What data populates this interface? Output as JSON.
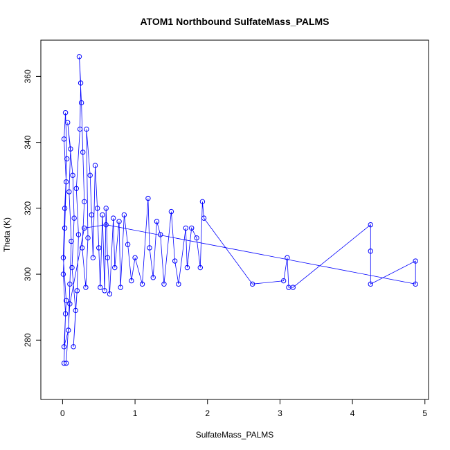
{
  "chart_data": {
    "type": "scatter",
    "title": "ATOM1 Northbound SulfateMass_PALMS",
    "xlabel": "SulfateMass_PALMS",
    "ylabel": "Theta (K)",
    "xlim": [
      -0.3,
      5.05
    ],
    "ylim": [
      262,
      371
    ],
    "x_ticks": [
      0,
      1,
      2,
      3,
      4,
      5
    ],
    "y_ticks": [
      280,
      300,
      320,
      340,
      360
    ],
    "point_style": "open-circle",
    "connected": true,
    "color": "#0000ff",
    "series": [
      {
        "values": [
          {
            "x": 0.02,
            "y": 273
          },
          {
            "x": 0.04,
            "y": 288
          },
          {
            "x": 0.01,
            "y": 300
          },
          {
            "x": 0.03,
            "y": 314
          },
          {
            "x": 0.05,
            "y": 328
          },
          {
            "x": 0.02,
            "y": 341
          },
          {
            "x": 0.04,
            "y": 349
          },
          {
            "x": 0.06,
            "y": 335
          },
          {
            "x": 0.03,
            "y": 320
          },
          {
            "x": 0.01,
            "y": 305
          },
          {
            "x": 0.05,
            "y": 292
          },
          {
            "x": 0.02,
            "y": 278
          },
          {
            "x": 0.08,
            "y": 283
          },
          {
            "x": 0.1,
            "y": 297
          },
          {
            "x": 0.12,
            "y": 310
          },
          {
            "x": 0.09,
            "y": 325
          },
          {
            "x": 0.11,
            "y": 338
          },
          {
            "x": 0.07,
            "y": 346
          },
          {
            "x": 0.14,
            "y": 330
          },
          {
            "x": 0.16,
            "y": 317
          },
          {
            "x": 0.13,
            "y": 302
          },
          {
            "x": 0.18,
            "y": 289
          },
          {
            "x": 0.15,
            "y": 278
          },
          {
            "x": 0.2,
            "y": 295
          },
          {
            "x": 0.22,
            "y": 312
          },
          {
            "x": 0.19,
            "y": 326
          },
          {
            "x": 0.24,
            "y": 344
          },
          {
            "x": 0.25,
            "y": 358
          },
          {
            "x": 0.23,
            "y": 366
          },
          {
            "x": 0.26,
            "y": 352
          },
          {
            "x": 0.28,
            "y": 337
          },
          {
            "x": 0.3,
            "y": 322
          },
          {
            "x": 0.27,
            "y": 308
          },
          {
            "x": 0.32,
            "y": 296
          },
          {
            "x": 0.35,
            "y": 311
          },
          {
            "x": 0.33,
            "y": 344
          },
          {
            "x": 0.38,
            "y": 330
          },
          {
            "x": 0.4,
            "y": 318
          },
          {
            "x": 0.42,
            "y": 305
          },
          {
            "x": 0.45,
            "y": 333
          },
          {
            "x": 0.48,
            "y": 320
          },
          {
            "x": 0.5,
            "y": 308
          },
          {
            "x": 0.52,
            "y": 296
          },
          {
            "x": 0.55,
            "y": 318
          },
          {
            "x": 0.58,
            "y": 295
          },
          {
            "x": 0.6,
            "y": 320
          },
          {
            "x": 0.62,
            "y": 305
          },
          {
            "x": 0.65,
            "y": 294
          },
          {
            "x": 0.7,
            "y": 317
          },
          {
            "x": 0.72,
            "y": 302
          },
          {
            "x": 0.78,
            "y": 316
          },
          {
            "x": 0.8,
            "y": 296
          },
          {
            "x": 0.85,
            "y": 318
          },
          {
            "x": 0.9,
            "y": 309
          },
          {
            "x": 0.95,
            "y": 298
          },
          {
            "x": 1.0,
            "y": 305
          },
          {
            "x": 1.1,
            "y": 297
          },
          {
            "x": 1.18,
            "y": 323
          },
          {
            "x": 1.2,
            "y": 308
          },
          {
            "x": 1.25,
            "y": 299
          },
          {
            "x": 1.3,
            "y": 316
          },
          {
            "x": 1.35,
            "y": 312
          },
          {
            "x": 1.4,
            "y": 297
          },
          {
            "x": 1.5,
            "y": 319
          },
          {
            "x": 1.55,
            "y": 304
          },
          {
            "x": 1.6,
            "y": 297
          },
          {
            "x": 1.7,
            "y": 314
          },
          {
            "x": 1.72,
            "y": 302
          },
          {
            "x": 1.78,
            "y": 314
          },
          {
            "x": 1.85,
            "y": 311
          },
          {
            "x": 1.9,
            "y": 302
          },
          {
            "x": 1.93,
            "y": 322
          },
          {
            "x": 1.95,
            "y": 317
          },
          {
            "x": 2.62,
            "y": 297
          },
          {
            "x": 3.05,
            "y": 298
          },
          {
            "x": 3.1,
            "y": 305
          },
          {
            "x": 3.12,
            "y": 296
          },
          {
            "x": 3.18,
            "y": 296
          },
          {
            "x": 4.25,
            "y": 315
          },
          {
            "x": 4.25,
            "y": 307
          },
          {
            "x": 4.25,
            "y": 297
          },
          {
            "x": 4.87,
            "y": 304
          },
          {
            "x": 4.87,
            "y": 297
          },
          {
            "x": 0.6,
            "y": 315
          },
          {
            "x": 0.3,
            "y": 314
          },
          {
            "x": 0.1,
            "y": 291
          },
          {
            "x": 0.05,
            "y": 273
          }
        ]
      }
    ]
  }
}
